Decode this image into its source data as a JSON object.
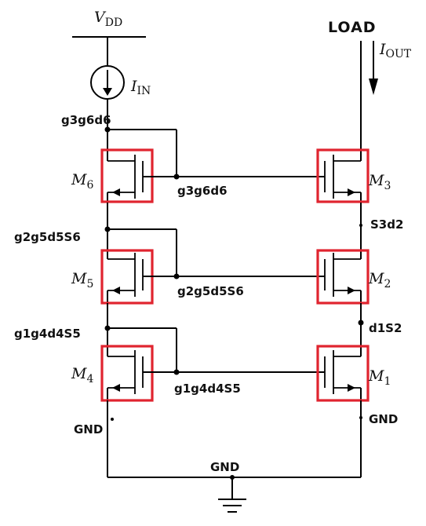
{
  "supply": {
    "label": "V",
    "sub": "DD"
  },
  "source": {
    "label": "I",
    "sub": "IN"
  },
  "load": {
    "label": "LOAD"
  },
  "output": {
    "label": "I",
    "sub": "OUT"
  },
  "transistors": [
    {
      "name": "M",
      "sub": "6"
    },
    {
      "name": "M",
      "sub": "5"
    },
    {
      "name": "M",
      "sub": "4"
    },
    {
      "name": "M",
      "sub": "3"
    },
    {
      "name": "M",
      "sub": "2"
    },
    {
      "name": "M",
      "sub": "1"
    }
  ],
  "annotations": {
    "top_left": "g3g6d6",
    "gate_top": "g3g6d6",
    "mid_left": "g2g5d5S6",
    "gate_mid": "g2g5d5S6",
    "low_left": "g1g4d4S5",
    "gate_low": "g1g4d4S5",
    "right_top": "S3d2",
    "right_mid": "d1S2",
    "gnd_left": "GND",
    "gnd_right": "GND",
    "gnd_bottom": "GND"
  },
  "colors": {
    "highlight": "#e0242f",
    "wire": "#000000"
  }
}
